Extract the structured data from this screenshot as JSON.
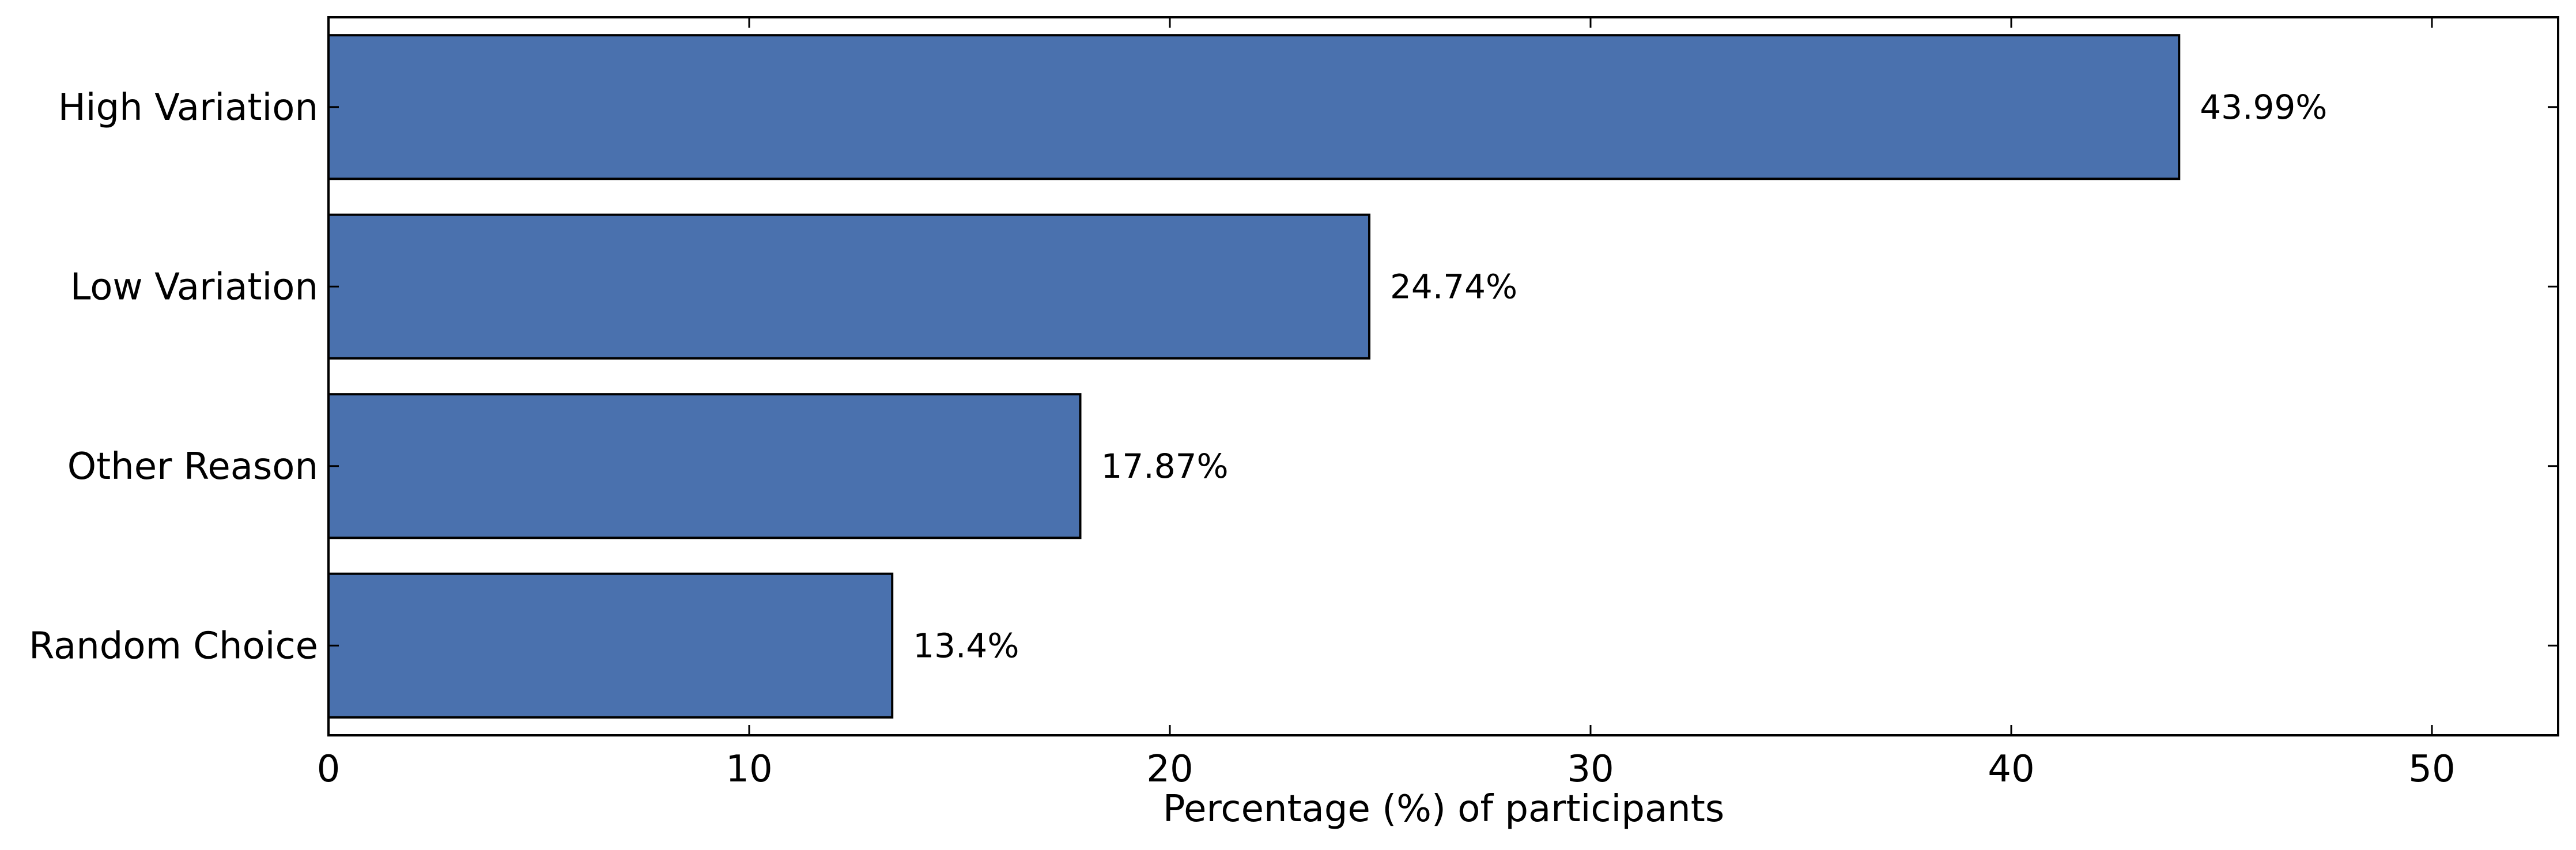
{
  "chart_data": {
    "type": "bar",
    "orientation": "horizontal",
    "categories": [
      "High Variation",
      "Low Variation",
      "Other Reason",
      "Random Choice"
    ],
    "values": [
      43.99,
      24.74,
      17.87,
      13.4
    ],
    "data_labels": [
      "43.99%",
      "24.74%",
      "17.87%",
      "13.4%"
    ],
    "title": "",
    "xlabel": "Percentage (%) of participants",
    "ylabel": "",
    "xlim": [
      0,
      53
    ],
    "xticks": [
      0,
      10,
      20,
      30,
      40,
      50
    ],
    "xtick_labels": [
      "0",
      "10",
      "20",
      "30",
      "40",
      "50"
    ],
    "grid": false,
    "legend": "none",
    "colors": {
      "bar": "#4a71ae",
      "edge": "#000000",
      "axis": "#000000"
    }
  }
}
